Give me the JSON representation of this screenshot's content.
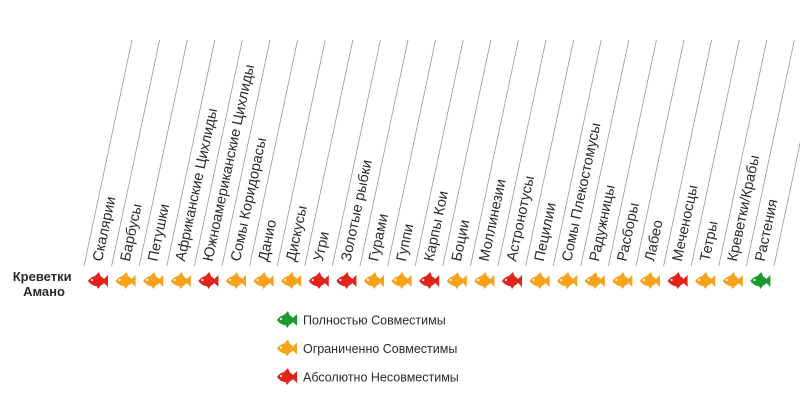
{
  "row_label": "Креветки Амано",
  "columns": [
    {
      "name": "Скалярии",
      "color": "#e2231a"
    },
    {
      "name": "Барбусы",
      "color": "#f7a21b"
    },
    {
      "name": "Петушки",
      "color": "#f7a21b"
    },
    {
      "name": "Африканские Цихлиды",
      "color": "#f7a21b"
    },
    {
      "name": "Южноамериканские Цихлиды",
      "color": "#e2231a"
    },
    {
      "name": "Сомы Коридорасы",
      "color": "#f7a21b"
    },
    {
      "name": "Данио",
      "color": "#f7a21b"
    },
    {
      "name": "Дискусы",
      "color": "#f7a21b"
    },
    {
      "name": "Угри",
      "color": "#e2231a"
    },
    {
      "name": "Золотые рыбки",
      "color": "#e2231a"
    },
    {
      "name": "Гурами",
      "color": "#f7a21b"
    },
    {
      "name": "Гуппи",
      "color": "#f7a21b"
    },
    {
      "name": "Карпы Кои",
      "color": "#e2231a"
    },
    {
      "name": "Боции",
      "color": "#f7a21b"
    },
    {
      "name": "Моллинезии",
      "color": "#f7a21b"
    },
    {
      "name": "Астронотусы",
      "color": "#e2231a"
    },
    {
      "name": "Пецилии",
      "color": "#f7a21b"
    },
    {
      "name": "Сомы Плекостомусы",
      "color": "#f7a21b"
    },
    {
      "name": "Радужницы",
      "color": "#f7a21b"
    },
    {
      "name": "Расборы",
      "color": "#f7a21b"
    },
    {
      "name": "Лабео",
      "color": "#f7a21b"
    },
    {
      "name": "Меченосцы",
      "color": "#e2231a"
    },
    {
      "name": "Тетры",
      "color": "#f7a21b"
    },
    {
      "name": "Креветки/Крабы",
      "color": "#f7a21b"
    },
    {
      "name": "Растения",
      "color": "#1c9a2e"
    }
  ],
  "legend": [
    {
      "label": "Полностью Совместимы",
      "color": "#1c9a2e"
    },
    {
      "label": "Ограниченно Совместимы",
      "color": "#f7a21b"
    },
    {
      "label": "Абсолютно Несовместимы",
      "color": "#e2231a"
    }
  ]
}
